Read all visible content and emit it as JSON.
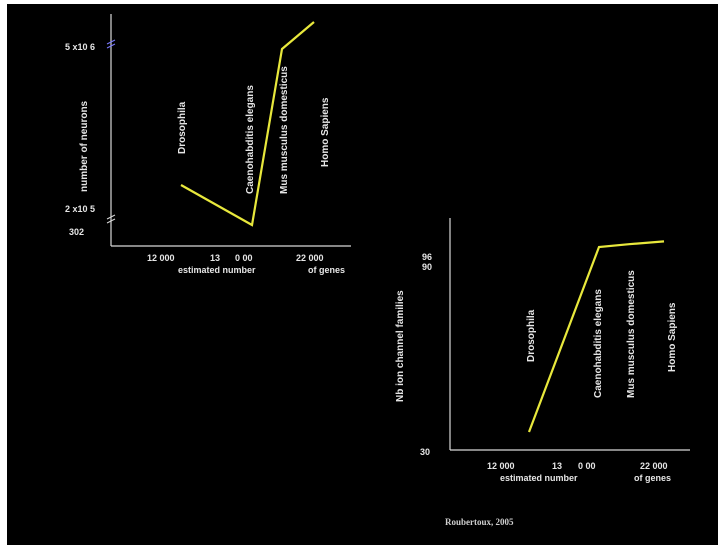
{
  "chart_data": [
    {
      "type": "line",
      "ylabel": "number  of  neurons",
      "xlabel_parts": [
        "estimated number",
        "of genes"
      ],
      "x_ticks": [
        "12 000",
        "13",
        "0 00",
        "22 000"
      ],
      "y_ticks": [
        "5 x10 6",
        "2 x10 5",
        "302"
      ],
      "species": [
        "Drosophila",
        "Caenohabditis elegans",
        "Mus musculus domesticus",
        "Homo Sapiens"
      ],
      "series": [
        {
          "values": [
            200000,
            302,
            5000000,
            5000000
          ]
        }
      ],
      "line_color": "#e8e83c",
      "axis_break": true
    },
    {
      "type": "line",
      "ylabel": "Nb  ion  channel  families",
      "xlabel_parts": [
        "estimated number",
        "of genes"
      ],
      "x_ticks": [
        "12 000",
        "13",
        "0 00",
        "22 000"
      ],
      "y_ticks": [
        "96",
        "90",
        "30"
      ],
      "species": [
        "Drosophila",
        "Caenohabditis elegans",
        "Mus musculus domesticus",
        "Homo Sapiens"
      ],
      "series": [
        {
          "values": [
            30,
            96,
            97,
            98
          ]
        }
      ],
      "line_color": "#e8e83c"
    }
  ],
  "citation": "Roubertoux, 2005"
}
